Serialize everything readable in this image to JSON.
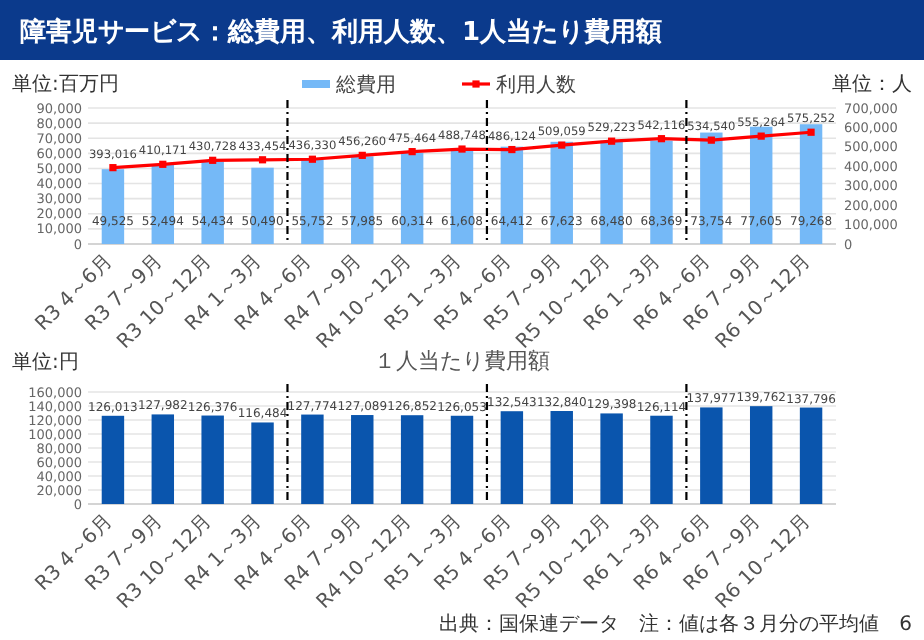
{
  "chart_data": [
    {
      "type": "bar",
      "title": "障害児サービス：総費用、利用人数、1人当たり費用額",
      "ylabel": "単位:百万円",
      "y2label": "単位：人",
      "categories": [
        "R3 4～6月",
        "R3 7～9月",
        "R3 10～12月",
        "R4 1～3月",
        "R4 4～6月",
        "R4 7～9月",
        "R4 10～12月",
        "R5 1～3月",
        "R5 4～6月",
        "R5 7～9月",
        "R5 10～12月",
        "R6 1～3月",
        "R6 4～6月",
        "R6 7～9月",
        "R6 10～12月"
      ],
      "series": [
        {
          "name": "総費用",
          "type": "bar",
          "color": "#75b9f7",
          "values": [
            49525,
            52494,
            54434,
            50490,
            55752,
            57985,
            60314,
            61608,
            64412,
            67623,
            68480,
            68369,
            73754,
            77605,
            79268
          ],
          "value_labels": [
            "49,525",
            "52,494",
            "54,434",
            "50,490",
            "55,752",
            "57,985",
            "60,314",
            "61,608",
            "64,412",
            "67,623",
            "68,480",
            "68,369",
            "73,754",
            "77,605",
            "79,268"
          ]
        },
        {
          "name": "利用人数",
          "type": "line",
          "axis": "y2",
          "color": "#ff0000",
          "values": [
            393016,
            410171,
            430728,
            433454,
            436330,
            456260,
            475464,
            488748,
            486124,
            509059,
            529223,
            542116,
            534540,
            555264,
            575252
          ],
          "value_labels": [
            "393,016",
            "410,171",
            "430,728",
            "433,454",
            "436,330",
            "456,260",
            "475,464",
            "488,748",
            "486,124",
            "509,059",
            "529,223",
            "542,116",
            "534,540",
            "555,264",
            "575,252"
          ]
        }
      ],
      "ylim": [
        0,
        90000
      ],
      "yticks": [
        {
          "value": 0,
          "label": "0"
        },
        {
          "value": 10000,
          "label": "10,000"
        },
        {
          "value": 20000,
          "label": "20,000"
        },
        {
          "value": 30000,
          "label": "30,000"
        },
        {
          "value": 40000,
          "label": "40,000"
        },
        {
          "value": 50000,
          "label": "50,000"
        },
        {
          "value": 60000,
          "label": "60,000"
        },
        {
          "value": 70000,
          "label": "70,000"
        },
        {
          "value": 80000,
          "label": "80,000"
        },
        {
          "value": 90000,
          "label": "90,000"
        }
      ],
      "y2lim": [
        0,
        700000
      ],
      "y2ticks": [
        {
          "value": 0,
          "label": "0"
        },
        {
          "value": 100000,
          "label": "100,000"
        },
        {
          "value": 200000,
          "label": "200,000"
        },
        {
          "value": 300000,
          "label": "300,000"
        },
        {
          "value": 400000,
          "label": "400,000"
        },
        {
          "value": 500000,
          "label": "500,000"
        },
        {
          "value": 600000,
          "label": "600,000"
        },
        {
          "value": 700000,
          "label": "700,000"
        }
      ],
      "marker": "square",
      "grid": "y",
      "legend": "top"
    },
    {
      "type": "bar",
      "title": "１人当たり費用額",
      "ylabel": "単位:円",
      "categories": [
        "R3 4～6月",
        "R3 7～9月",
        "R3 10～12月",
        "R4 1～3月",
        "R4 4～6月",
        "R4 7～9月",
        "R4 10～12月",
        "R5 1～3月",
        "R5 4～6月",
        "R5 7～9月",
        "R5 10～12月",
        "R6 1～3月",
        "R6 4～6月",
        "R6 7～9月",
        "R6 10～12月"
      ],
      "series": [
        {
          "color": "#0a55ad",
          "values": [
            126013,
            127982,
            126376,
            116484,
            127774,
            127089,
            126852,
            126053,
            132543,
            132840,
            129398,
            126114,
            137977,
            139762,
            137796
          ],
          "value_labels": [
            "126,013",
            "127,982",
            "126,376",
            "116,484",
            "127,774",
            "127,089",
            "126,852",
            "126,053",
            "132,543",
            "132,840",
            "129,398",
            "126,114",
            "137,977",
            "139,762",
            "137,796"
          ]
        }
      ],
      "ylim": [
        0,
        160000
      ],
      "yticks": [
        {
          "value": 0,
          "label": "0"
        },
        {
          "value": 20000,
          "label": "20,000"
        },
        {
          "value": 40000,
          "label": "40,000"
        },
        {
          "value": 60000,
          "label": "60,000"
        },
        {
          "value": 80000,
          "label": "80,000"
        },
        {
          "value": 100000,
          "label": "100,000"
        },
        {
          "value": 120000,
          "label": "120,000"
        },
        {
          "value": 140000,
          "label": "140,000"
        },
        {
          "value": 160000,
          "label": "160,000"
        }
      ],
      "grid": "y",
      "annotations": [
        "出典：国保連データ",
        "注：値は各３月分の平均値",
        "6"
      ]
    }
  ]
}
